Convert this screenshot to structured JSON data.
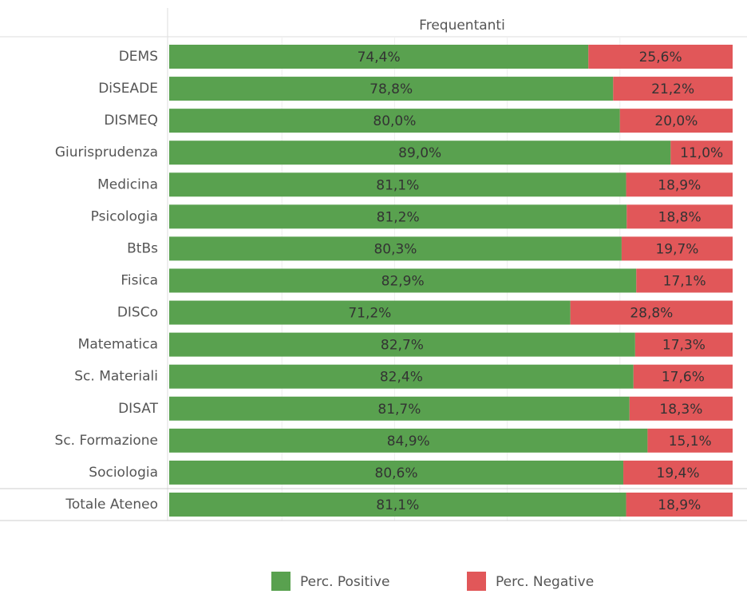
{
  "chart_data": {
    "type": "stacked-bar-100",
    "orientation": "horizontal",
    "title": "Frequentanti",
    "categories": [
      "DEMS",
      "DiSEADE",
      "DISMEQ",
      "Giurisprudenza",
      "Medicina",
      "Psicologia",
      "BtBs",
      "Fisica",
      "DISCo",
      "Matematica",
      "Sc. Materiali",
      "DISAT",
      "Sc. Formazione",
      "Sociologia",
      "Totale Ateneo"
    ],
    "series": [
      {
        "name": "Perc. Positive",
        "color": "#59a14f",
        "values": [
          74.4,
          78.8,
          80.0,
          89.0,
          81.1,
          81.2,
          80.3,
          82.9,
          71.2,
          82.7,
          82.4,
          81.7,
          84.9,
          80.6,
          81.1
        ],
        "value_labels": [
          "74,4%",
          "78,8%",
          "80,0%",
          "89,0%",
          "81,1%",
          "81,2%",
          "80,3%",
          "82,9%",
          "71,2%",
          "82,7%",
          "82,4%",
          "81,7%",
          "84,9%",
          "80,6%",
          "81,1%"
        ]
      },
      {
        "name": "Perc. Negative",
        "color": "#e15759",
        "values": [
          25.6,
          21.2,
          20.0,
          11.0,
          18.9,
          18.8,
          19.7,
          17.1,
          28.8,
          17.3,
          17.6,
          18.3,
          15.1,
          19.4,
          18.9
        ],
        "value_labels": [
          "25,6%",
          "21,2%",
          "20,0%",
          "11,0%",
          "18,9%",
          "18,8%",
          "19,7%",
          "17,1%",
          "28,8%",
          "17,3%",
          "17,6%",
          "18,3%",
          "15,1%",
          "19,4%",
          "18,9%"
        ]
      }
    ],
    "xlim": [
      0,
      100
    ],
    "xticks": [
      20,
      40,
      60,
      80
    ],
    "grid": true,
    "legend": "bottom"
  }
}
